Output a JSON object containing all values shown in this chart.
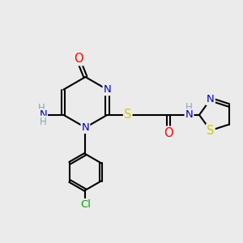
{
  "bg_color": "#ebebeb",
  "atom_colors": {
    "C": "#000000",
    "N": "#0000cc",
    "O": "#ff0000",
    "S": "#cccc00",
    "Cl": "#00aa00",
    "H": "#7faaaa"
  },
  "font_size": 9.5,
  "bond_width": 1.5,
  "dbo": 0.07
}
